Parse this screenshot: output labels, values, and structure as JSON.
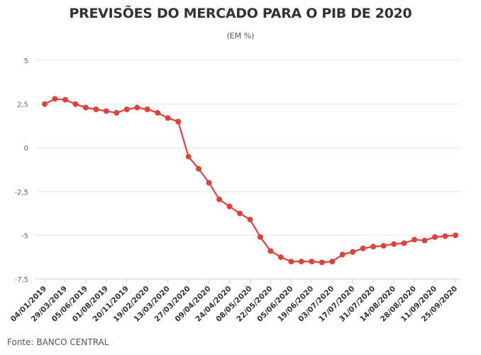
{
  "chart_data": {
    "type": "line",
    "title": "PREVISÕES DO MERCADO PARA O PIB DE 2020",
    "subtitle": "(EM %)",
    "source": "Fonte: BANCO CENTRAL",
    "xlabel": "",
    "ylabel": "",
    "ylim": [
      -7.5,
      5
    ],
    "yticks": [
      5,
      2.5,
      0,
      -2.5,
      -5,
      -7.5
    ],
    "ytick_labels": [
      "5",
      "2,5",
      "0",
      "-2,5",
      "-5",
      "-7,5"
    ],
    "xtick_labels": [
      "04/01/2019",
      "29/03/2019",
      "05/06/2019",
      "01/08/2019",
      "20/11/2019",
      "19/02/2020",
      "13/03/2020",
      "27/03/2020",
      "09/04/2020",
      "24/04/2020",
      "08/05/2020",
      "22/05/2020",
      "05/06/2020",
      "19/06/2020",
      "03/07/2020",
      "17/07/2020",
      "31/07/2020",
      "14/08/2020",
      "28/08/2020",
      "11/09/2020",
      "25/09/2020"
    ],
    "grid": true,
    "legend": "none",
    "color": "#e0413a",
    "values": [
      2.5,
      2.8,
      2.75,
      2.5,
      2.3,
      2.2,
      2.1,
      2.0,
      2.2,
      2.3,
      2.2,
      2.0,
      1.7,
      1.5,
      -0.5,
      -1.2,
      -2.0,
      -2.95,
      -3.35,
      -3.75,
      -4.1,
      -5.1,
      -5.9,
      -6.25,
      -6.5,
      -6.5,
      -6.5,
      -6.55,
      -6.5,
      -6.1,
      -5.95,
      -5.75,
      -5.65,
      -5.6,
      -5.5,
      -5.45,
      -5.25,
      -5.3,
      -5.1,
      -5.05,
      -5.0
    ]
  }
}
